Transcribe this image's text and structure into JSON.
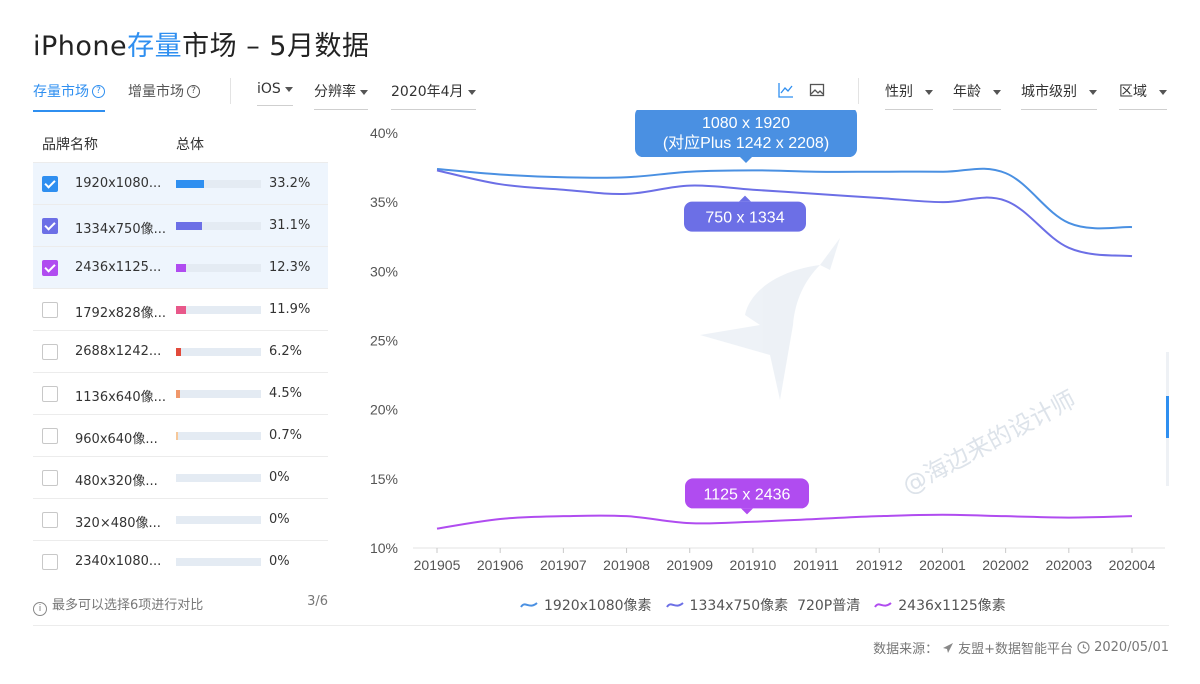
{
  "title": {
    "prefix": "iPhone",
    "accent": "存量",
    "suffix": "市场 – 5月数据"
  },
  "tabs": [
    {
      "label": "存量市场",
      "active": true
    },
    {
      "label": "增量市场",
      "active": false
    }
  ],
  "filters": {
    "os": "iOS",
    "resolution": "分辨率",
    "month": "2020年4月",
    "gender": "性别",
    "age": "年龄",
    "city_level": "城市级别",
    "region": "区域"
  },
  "view_icons": [
    "line-chart-icon",
    "image-icon"
  ],
  "table": {
    "headers": {
      "name": "品牌名称",
      "overall": "总体"
    },
    "rows": [
      {
        "name": "1920x1080...",
        "value": "33.2%",
        "fraction": 0.332,
        "checked": true,
        "color": "#2f8ff0"
      },
      {
        "name": "1334x750像...",
        "value": "31.1%",
        "fraction": 0.311,
        "checked": true,
        "color": "#6c6fe6"
      },
      {
        "name": "2436x1125...",
        "value": "12.3%",
        "fraction": 0.123,
        "checked": true,
        "color": "#b04cf0"
      },
      {
        "name": "1792x828像...",
        "value": "11.9%",
        "fraction": 0.119,
        "checked": false,
        "color": "#e8588a"
      },
      {
        "name": "2688x1242...",
        "value": "6.2%",
        "fraction": 0.062,
        "checked": false,
        "color": "#e24a3b"
      },
      {
        "name": "1136x640像...",
        "value": "4.5%",
        "fraction": 0.045,
        "checked": false,
        "color": "#f0976a"
      },
      {
        "name": "960x640像...",
        "value": "0.7%",
        "fraction": 0.007,
        "checked": false,
        "color": "#f6c89a"
      },
      {
        "name": "480x320像...",
        "value": "0%",
        "fraction": 0,
        "checked": false,
        "color": "#cccccc"
      },
      {
        "name": "320×480像...",
        "value": "0%",
        "fraction": 0,
        "checked": false,
        "color": "#cccccc"
      },
      {
        "name": "2340x1080...",
        "value": "0%",
        "fraction": 0,
        "checked": false,
        "color": "#cccccc"
      }
    ]
  },
  "footnote": {
    "text": "最多可以选择6项进行对比",
    "page": "3/6"
  },
  "chart_data": {
    "type": "line",
    "categories": [
      "201905",
      "201906",
      "201907",
      "201908",
      "201909",
      "201910",
      "201911",
      "201912",
      "202001",
      "202002",
      "202003",
      "202004"
    ],
    "ylim": [
      10,
      40
    ],
    "yticks": [
      "10%",
      "15%",
      "20%",
      "25%",
      "30%",
      "35%",
      "40%"
    ],
    "ytick_values": [
      10,
      15,
      20,
      25,
      30,
      35,
      40
    ],
    "series": [
      {
        "name": "1920x1080像素",
        "color": "#4a90e2",
        "values": [
          37.4,
          37.0,
          36.8,
          36.8,
          37.2,
          37.3,
          37.2,
          37.2,
          37.2,
          37.1,
          33.5,
          33.2
        ]
      },
      {
        "name": "1334x750像素  720P普清",
        "color": "#6c6fe6",
        "values": [
          37.3,
          36.3,
          35.9,
          35.6,
          36.2,
          35.9,
          35.6,
          35.3,
          35.0,
          35.1,
          31.7,
          31.1
        ]
      },
      {
        "name": "2436x1125像素",
        "color": "#b04cf0",
        "values": [
          11.4,
          12.1,
          12.3,
          12.3,
          11.8,
          11.9,
          12.1,
          12.3,
          12.4,
          12.3,
          12.2,
          12.3
        ]
      }
    ],
    "callouts": [
      {
        "series": 0,
        "lines": [
          "1080 x 1920",
          "(对应Plus 1242 x 2208)"
        ],
        "color": "#4a90e2"
      },
      {
        "series": 1,
        "lines": [
          "750 x 1334"
        ],
        "color": "#6c6fe6"
      },
      {
        "series": 2,
        "lines": [
          "1125 x 2436"
        ],
        "color": "#b04cf0"
      }
    ]
  },
  "source": {
    "label": "数据来源：",
    "provider": "友盟+数据智能平台",
    "date": "2020/05/01"
  },
  "watermark": "@海边来的设计师"
}
